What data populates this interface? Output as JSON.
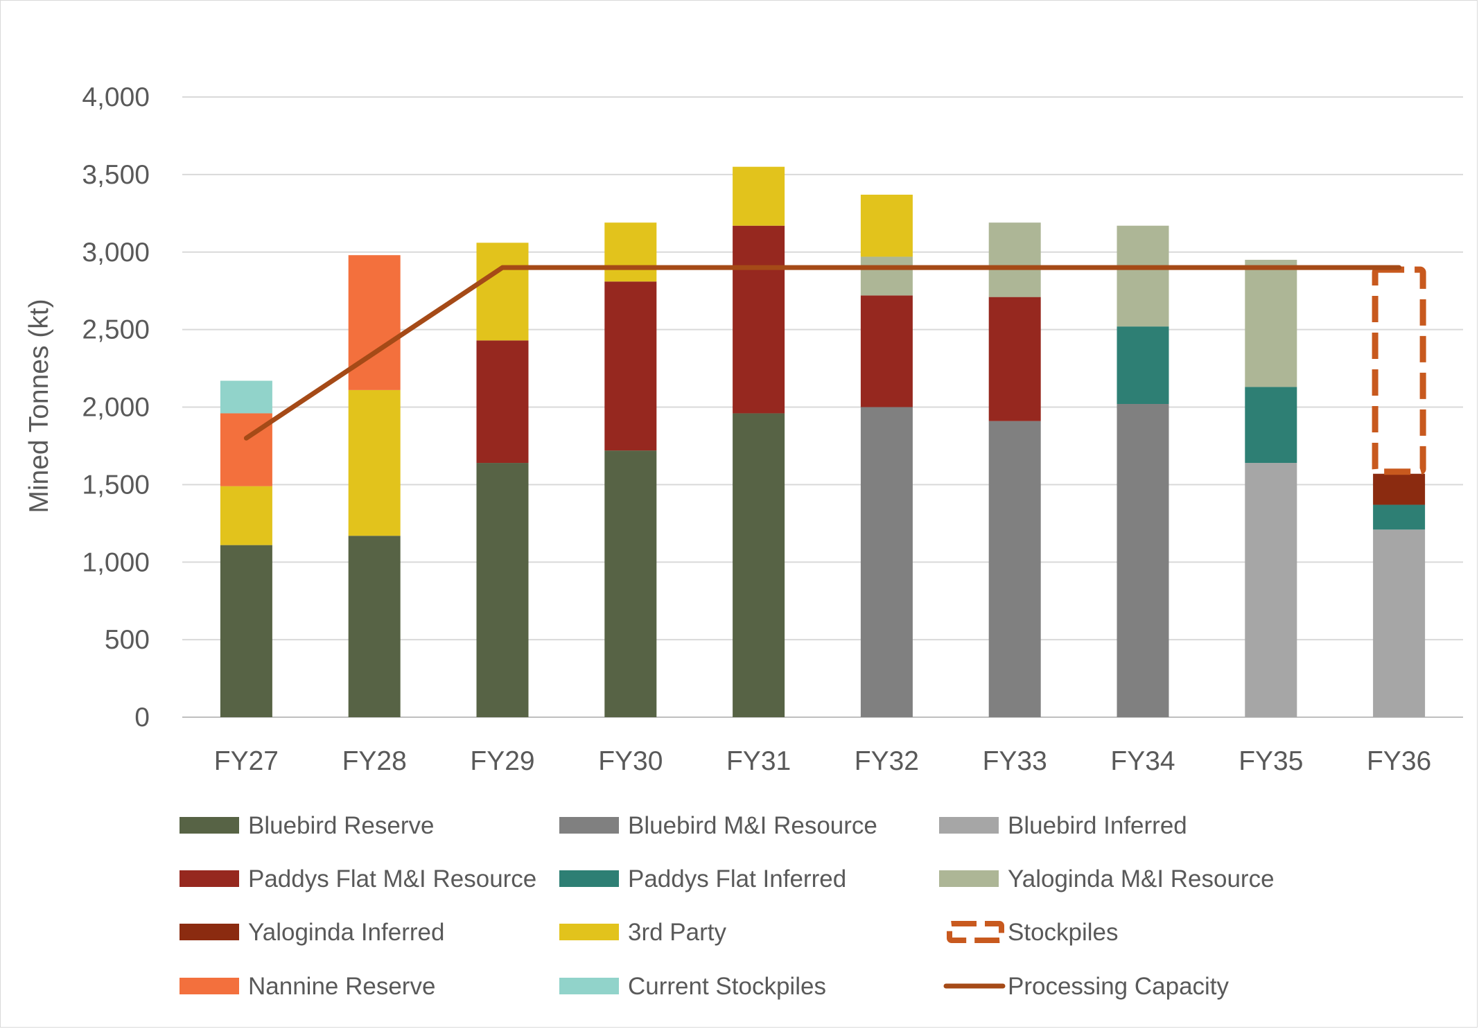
{
  "chart_data": {
    "type": "bar",
    "stacked": true,
    "title": "",
    "xlabel": "",
    "ylabel": "Mined Tonnes (kt)",
    "ylim": [
      0,
      4000
    ],
    "yticks": [
      0,
      500,
      1000,
      1500,
      2000,
      2500,
      3000,
      3500,
      4000
    ],
    "ytick_labels": [
      "0",
      "500",
      "1,000",
      "1,500",
      "2,000",
      "2,500",
      "3,000",
      "3,500",
      "4,000"
    ],
    "grid": true,
    "legend_position": "bottom",
    "categories": [
      "FY27",
      "FY28",
      "FY29",
      "FY30",
      "FY31",
      "FY32",
      "FY33",
      "FY34",
      "FY35",
      "FY36"
    ],
    "series": [
      {
        "name": "Bluebird Reserve",
        "color": "#576345",
        "values": [
          1110,
          1170,
          1640,
          1720,
          1960,
          0,
          0,
          0,
          0,
          0
        ]
      },
      {
        "name": "Bluebird M&I Resource",
        "color": "#808080",
        "values": [
          0,
          0,
          0,
          0,
          0,
          2000,
          1910,
          2020,
          0,
          0
        ]
      },
      {
        "name": "Bluebird Inferred",
        "color": "#a6a6a6",
        "values": [
          0,
          0,
          0,
          0,
          0,
          0,
          0,
          0,
          1640,
          1210
        ]
      },
      {
        "name": "Paddys Flat M&I Resource",
        "color": "#96281f",
        "values": [
          0,
          0,
          790,
          1090,
          1210,
          720,
          800,
          0,
          0,
          0
        ]
      },
      {
        "name": "Paddys Flat Inferred",
        "color": "#2e7f74",
        "values": [
          0,
          0,
          0,
          0,
          0,
          0,
          0,
          500,
          490,
          160
        ]
      },
      {
        "name": "Yaloginda M&I Resource",
        "color": "#adb696",
        "values": [
          0,
          0,
          0,
          0,
          0,
          250,
          480,
          650,
          820,
          0
        ]
      },
      {
        "name": "Yaloginda Inferred",
        "color": "#8b2b10",
        "values": [
          0,
          0,
          0,
          0,
          0,
          0,
          0,
          0,
          0,
          200
        ]
      },
      {
        "name": "3rd Party",
        "color": "#e2c31c",
        "values": [
          380,
          940,
          630,
          380,
          380,
          400,
          0,
          0,
          0,
          0
        ]
      },
      {
        "name": "Nannine Reserve",
        "color": "#f3703d",
        "values": [
          470,
          870,
          0,
          0,
          0,
          0,
          0,
          0,
          0,
          0
        ]
      },
      {
        "name": "Current Stockpiles",
        "color": "#91d3ca",
        "values": [
          210,
          0,
          0,
          0,
          0,
          0,
          0,
          0,
          0,
          0
        ]
      },
      {
        "name": "Stockpiles",
        "color": "#c8591e",
        "style": "dashed-outline",
        "values": [
          0,
          0,
          0,
          0,
          0,
          0,
          0,
          0,
          0,
          1330
        ]
      },
      {
        "name": "Processing Capacity",
        "type": "line",
        "color": "#a54a17",
        "values": [
          1800,
          2350,
          2900,
          2900,
          2900,
          2900,
          2900,
          2900,
          2900,
          2900
        ]
      }
    ],
    "legend_order": [
      "Bluebird Reserve",
      "Bluebird M&I Resource",
      "Bluebird Inferred",
      "Paddys Flat M&I Resource",
      "Paddys Flat Inferred",
      "Yaloginda M&I Resource",
      "Yaloginda Inferred",
      "3rd Party",
      "Stockpiles",
      "Nannine Reserve",
      "Current Stockpiles",
      "Processing Capacity"
    ]
  }
}
